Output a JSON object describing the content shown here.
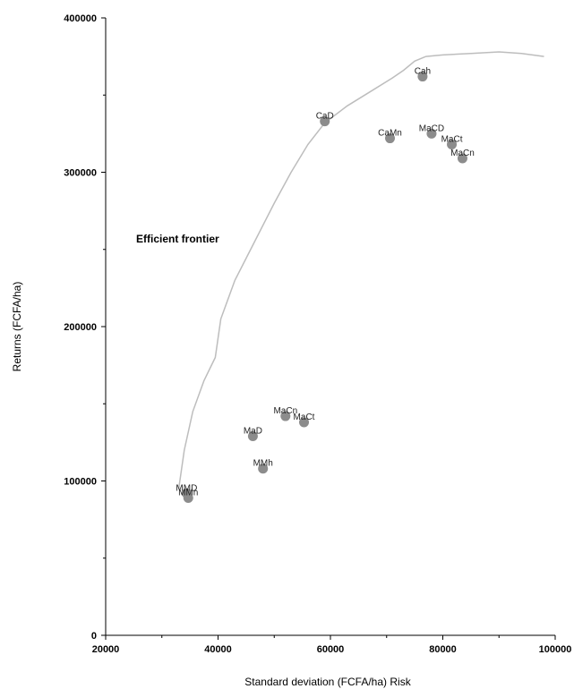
{
  "chart_data": {
    "type": "scatter",
    "title": "",
    "xlabel": "Standard deviation (FCFA/ha) Risk",
    "ylabel": "Returns (FCFA/ha)",
    "xlim": [
      20000,
      100000
    ],
    "ylim": [
      0,
      400000
    ],
    "x_ticks": [
      20000,
      40000,
      60000,
      80000,
      100000
    ],
    "y_ticks": [
      0,
      100000,
      200000,
      300000,
      400000
    ],
    "x_tick_labels": [
      "20000",
      "40000",
      "60000",
      "80000",
      "100000"
    ],
    "y_tick_labels": [
      "0",
      "100000",
      "200000",
      "300000",
      "400000"
    ],
    "grid": false,
    "point_color": "#8c8c8c",
    "line_color": "#bdbdbd",
    "points": [
      {
        "label": "MMD",
        "x": 34400,
        "y": 92000
      },
      {
        "label": "MMn",
        "x": 34700,
        "y": 89000
      },
      {
        "label": "MaD",
        "x": 46200,
        "y": 129000
      },
      {
        "label": "MMh",
        "x": 48000,
        "y": 108000
      },
      {
        "label": "MaCn",
        "x": 52000,
        "y": 142000
      },
      {
        "label": "MaCt",
        "x": 55300,
        "y": 138000
      },
      {
        "label": "CaD",
        "x": 59000,
        "y": 333000
      },
      {
        "label": "CaMn",
        "x": 70600,
        "y": 322000
      },
      {
        "label": "Cah",
        "x": 76400,
        "y": 362000
      },
      {
        "label": "MaCD",
        "x": 78000,
        "y": 325000
      },
      {
        "label": "MaCt",
        "x": 81600,
        "y": 318000
      },
      {
        "label": "MaCn",
        "x": 83500,
        "y": 309000
      }
    ],
    "frontier": {
      "name": "Efficient frontier",
      "x": [
        33000,
        34000,
        35500,
        37500,
        39500,
        40500,
        43000,
        46500,
        50000,
        53000,
        56000,
        59000,
        63000,
        67000,
        71000,
        73000,
        75000,
        77000,
        80000,
        85000,
        90000,
        94000,
        98000
      ],
      "y": [
        95000,
        120000,
        145000,
        165000,
        180000,
        205000,
        230000,
        255000,
        280000,
        300000,
        318000,
        332000,
        343000,
        352000,
        361000,
        366000,
        372000,
        375000,
        376000,
        377000,
        378000,
        377000,
        375000
      ]
    }
  }
}
